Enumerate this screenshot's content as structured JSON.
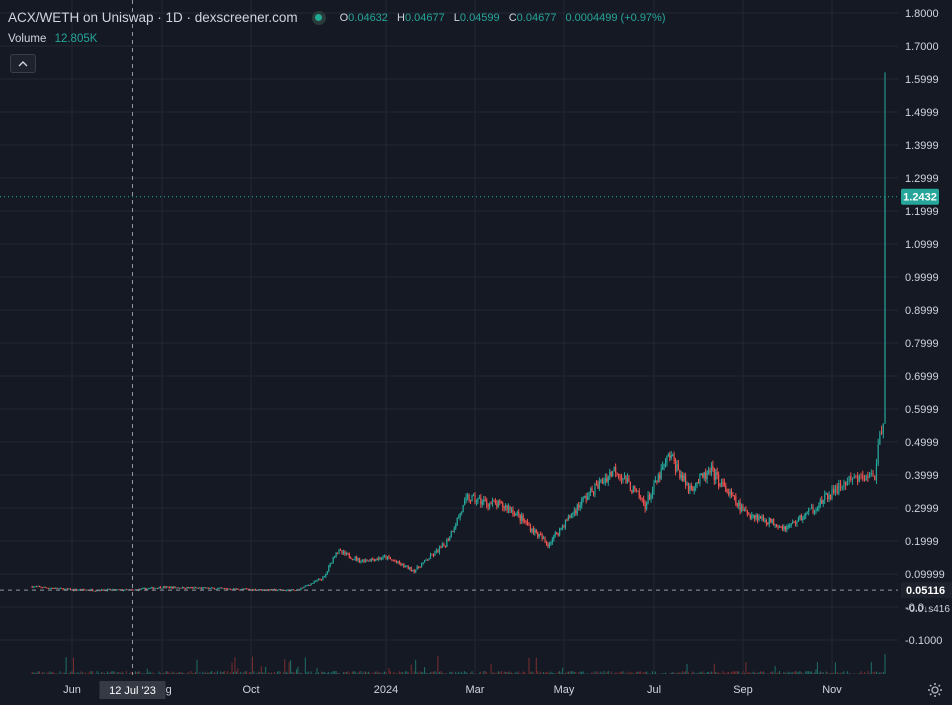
{
  "legend": {
    "title": "ACX/WETH on Uniswap · 1D · dexscreener.com",
    "ohlc": [
      {
        "key": "O",
        "value": "0.04632"
      },
      {
        "key": "H",
        "value": "0.04677"
      },
      {
        "key": "L",
        "value": "0.04599"
      },
      {
        "key": "C",
        "value": "0.04677"
      }
    ],
    "change": "0.0004499 (+0.97%)",
    "volume_label": "Volume",
    "volume_value": "12.805K"
  },
  "colors": {
    "background": "#151924",
    "up": "#26a69a",
    "down": "#ef5350",
    "grid": "#242833",
    "text": "#d1d4dc",
    "label_bg": "#1e222d"
  },
  "icons": {
    "collapse": "chevron-up-icon",
    "settings": "gear-icon"
  },
  "chart_data": {
    "type": "candlestick",
    "series_name": "",
    "price_axis": {
      "ticks": [
        "1.8000",
        "1.7000",
        "1.5999",
        "1.4999",
        "1.3999",
        "1.2999",
        "1.1999",
        "1.0999",
        "0.9999",
        "0.8999",
        "0.7999",
        "0.6999",
        "0.5999",
        "0.4999",
        "0.3999",
        "0.2999",
        "0.1999",
        "0.09999",
        "-0.0",
        "-0.1000"
      ],
      "range": [
        -0.1,
        1.8
      ]
    },
    "time_axis": {
      "labels": [
        {
          "label": "Jun",
          "date": "2023-06-01"
        },
        {
          "label": "Aug",
          "date": "2023-08-01"
        },
        {
          "label": "Oct",
          "date": "2023-10-01"
        },
        {
          "label": "2024",
          "date": "2024-01-01"
        },
        {
          "label": "Mar",
          "date": "2024-03-01"
        },
        {
          "label": "May",
          "date": "2024-05-01"
        },
        {
          "label": "Jul",
          "date": "2024-07-01"
        },
        {
          "label": "Sep",
          "date": "2024-09-01"
        },
        {
          "label": "Nov",
          "date": "2024-11-01"
        }
      ]
    },
    "crosshair": {
      "date_label": "12 Jul '23",
      "price_label": "0.05116",
      "price": 0.05116
    },
    "current_price": {
      "label": "1.2432",
      "value": 1.2432
    },
    "extra_axis_label": "-0.0↓s416",
    "close_series_approx": [
      {
        "date": "2023-05-05",
        "close": 0.062
      },
      {
        "date": "2023-06-01",
        "close": 0.052
      },
      {
        "date": "2023-07-12",
        "close": 0.051
      },
      {
        "date": "2023-08-01",
        "close": 0.06
      },
      {
        "date": "2023-10-01",
        "close": 0.053
      },
      {
        "date": "2023-11-01",
        "close": 0.05
      },
      {
        "date": "2023-11-20",
        "close": 0.09
      },
      {
        "date": "2023-11-28",
        "close": 0.17
      },
      {
        "date": "2023-12-15",
        "close": 0.14
      },
      {
        "date": "2024-01-01",
        "close": 0.15
      },
      {
        "date": "2024-01-20",
        "close": 0.11
      },
      {
        "date": "2024-02-10",
        "close": 0.19
      },
      {
        "date": "2024-02-25",
        "close": 0.33
      },
      {
        "date": "2024-03-25",
        "close": 0.3
      },
      {
        "date": "2024-04-20",
        "close": 0.19
      },
      {
        "date": "2024-05-15",
        "close": 0.33
      },
      {
        "date": "2024-06-05",
        "close": 0.42
      },
      {
        "date": "2024-06-25",
        "close": 0.31
      },
      {
        "date": "2024-07-12",
        "close": 0.46
      },
      {
        "date": "2024-07-25",
        "close": 0.36
      },
      {
        "date": "2024-08-10",
        "close": 0.41
      },
      {
        "date": "2024-09-01",
        "close": 0.29
      },
      {
        "date": "2024-10-01",
        "close": 0.24
      },
      {
        "date": "2024-10-20",
        "close": 0.3
      },
      {
        "date": "2024-11-10",
        "close": 0.38
      },
      {
        "date": "2024-11-26",
        "close": 0.4
      },
      {
        "date": "2024-12-01",
        "close": 0.58
      },
      {
        "date": "2024-12-02",
        "close": 1.2432
      }
    ],
    "spike_high": 1.62
  }
}
